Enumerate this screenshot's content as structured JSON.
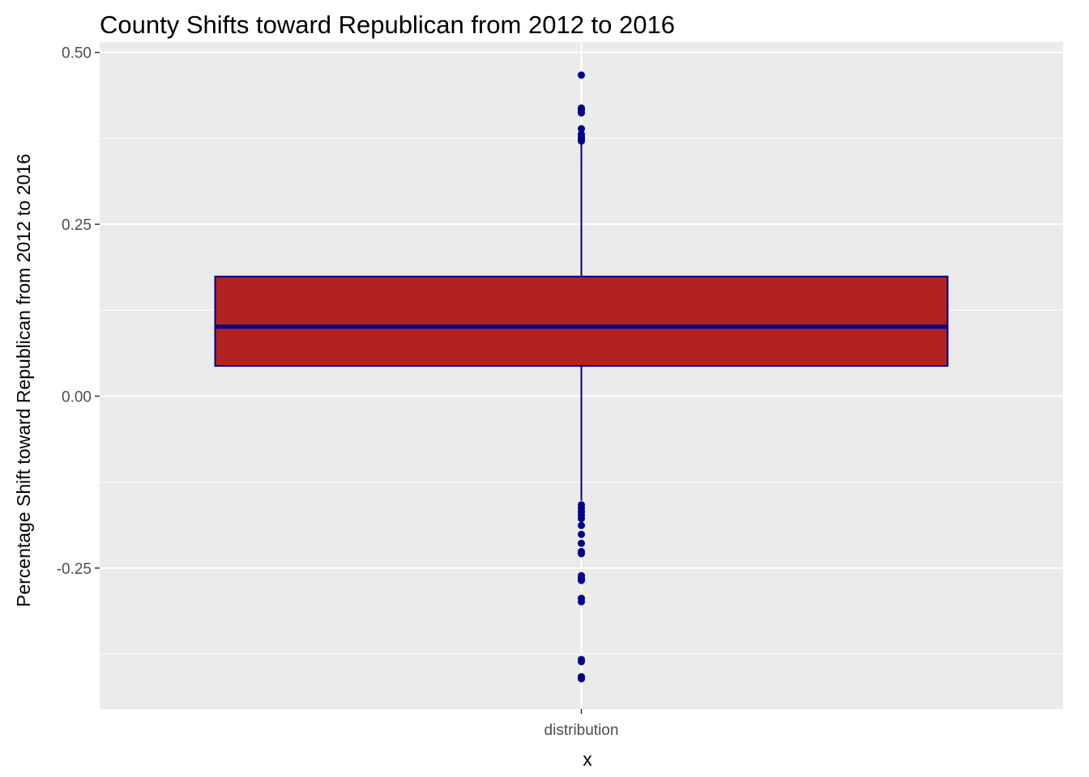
{
  "chart_data": {
    "type": "boxplot",
    "title": "County Shifts toward Republican from 2012 to 2016",
    "xlabel": "x",
    "ylabel": "Percentage Shift toward Republican from 2012 to 2016",
    "categories": [
      "distribution"
    ],
    "ylim": [
      -0.455,
      0.515
    ],
    "y_ticks": [
      0.5,
      0.25,
      0.0,
      -0.25
    ],
    "y_tick_labels": [
      "0.50",
      "0.25",
      "0.00",
      "-0.25"
    ],
    "grid": true,
    "box": {
      "q1": 0.044,
      "median": 0.101,
      "q3": 0.174,
      "whisker_low": -0.152,
      "whisker_high": 0.37
    },
    "outliers": [
      0.467,
      0.419,
      0.416,
      0.412,
      0.389,
      0.381,
      0.377,
      0.374,
      0.371,
      -0.158,
      -0.163,
      -0.168,
      -0.173,
      -0.178,
      -0.188,
      -0.201,
      -0.214,
      -0.226,
      -0.229,
      -0.261,
      -0.265,
      -0.268,
      -0.294,
      -0.299,
      -0.383,
      -0.386,
      -0.408,
      -0.411
    ],
    "colors": {
      "panel_background": "#ebebeb",
      "grid": "#ffffff",
      "box_fill": "#b22222",
      "box_outline": "#00008b",
      "outlier": "#00008b"
    }
  }
}
